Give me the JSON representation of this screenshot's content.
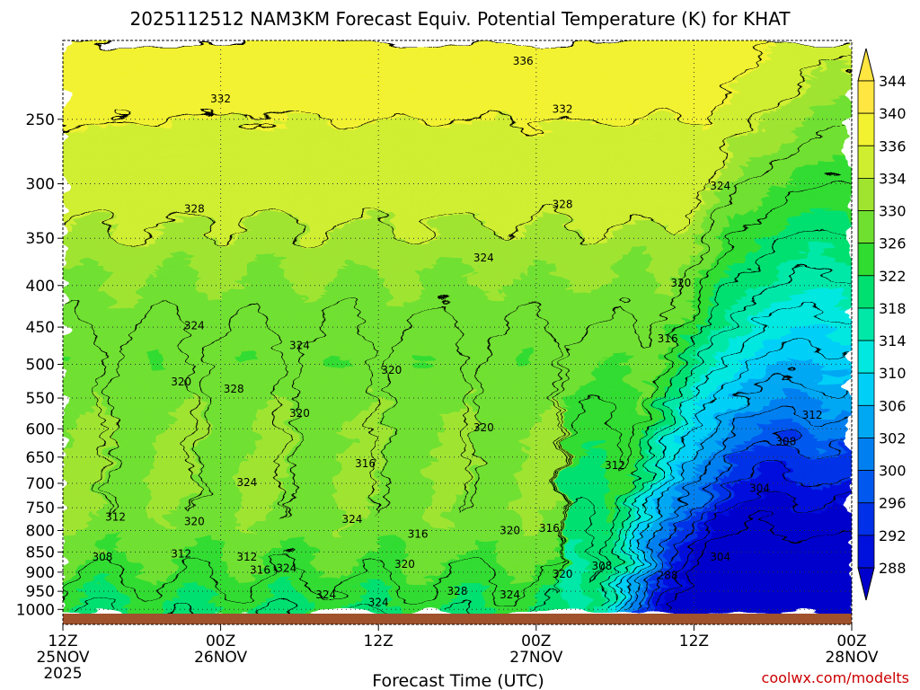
{
  "chart_data": {
    "type": "heatmap",
    "title": "2025112512 NAM3KM Forecast Equiv. Potential Temperature (K) for KHAT",
    "xlabel": "Forecast Time (UTC)",
    "ylabel": "",
    "variable": "Equivalent Potential Temperature (K)",
    "x_ticks": [
      {
        "hour": 0,
        "line1": "12Z",
        "line2": "25NOV",
        "line3": "2025"
      },
      {
        "hour": 12,
        "line1": "00Z",
        "line2": "26NOV",
        "line3": ""
      },
      {
        "hour": 24,
        "line1": "12Z",
        "line2": "",
        "line3": ""
      },
      {
        "hour": 36,
        "line1": "00Z",
        "line2": "27NOV",
        "line3": ""
      },
      {
        "hour": 48,
        "line1": "12Z",
        "line2": "",
        "line3": ""
      },
      {
        "hour": 60,
        "line1": "00Z",
        "line2": "28NOV",
        "line3": ""
      }
    ],
    "xlim_hours": [
      0,
      60
    ],
    "y_ticks": [
      250,
      300,
      350,
      400,
      450,
      500,
      550,
      600,
      650,
      700,
      750,
      800,
      850,
      900,
      950,
      1000
    ],
    "ylim_hPa": [
      1012,
      200
    ],
    "colorbar_levels": [
      288,
      292,
      296,
      300,
      302,
      306,
      310,
      314,
      318,
      322,
      326,
      330,
      334,
      336,
      340,
      344
    ],
    "colorbar_colors": [
      "#0000cc",
      "#0010dd",
      "#0030e8",
      "#0058ee",
      "#0080f0",
      "#00a8f4",
      "#00d0f8",
      "#00e8e0",
      "#00e8a8",
      "#00e070",
      "#30dc30",
      "#70e030",
      "#a0e430",
      "#d0ee30",
      "#f2f230",
      "#ffe640"
    ],
    "contour_labels": [
      {
        "value": "336",
        "hour": 35.0,
        "p": 212
      },
      {
        "value": "332",
        "hour": 12.0,
        "p": 236
      },
      {
        "value": "332",
        "hour": 38.0,
        "p": 243
      },
      {
        "value": "328",
        "hour": 10.0,
        "p": 322
      },
      {
        "value": "328",
        "hour": 38.0,
        "p": 318
      },
      {
        "value": "324",
        "hour": 50.0,
        "p": 302
      },
      {
        "value": "324",
        "hour": 32.0,
        "p": 370
      },
      {
        "value": "320",
        "hour": 47.0,
        "p": 397
      },
      {
        "value": "324",
        "hour": 10.0,
        "p": 448
      },
      {
        "value": "324",
        "hour": 18.0,
        "p": 474
      },
      {
        "value": "316",
        "hour": 46.0,
        "p": 465
      },
      {
        "value": "320",
        "hour": 9.0,
        "p": 525
      },
      {
        "value": "320",
        "hour": 25.0,
        "p": 508
      },
      {
        "value": "328",
        "hour": 13.0,
        "p": 536
      },
      {
        "value": "320",
        "hour": 18.0,
        "p": 574
      },
      {
        "value": "312",
        "hour": 57.0,
        "p": 577
      },
      {
        "value": "320",
        "hour": 32.0,
        "p": 598
      },
      {
        "value": "308",
        "hour": 55.0,
        "p": 622
      },
      {
        "value": "316",
        "hour": 23.0,
        "p": 662
      },
      {
        "value": "312",
        "hour": 42.0,
        "p": 665
      },
      {
        "value": "324",
        "hour": 14.0,
        "p": 698
      },
      {
        "value": "304",
        "hour": 53.0,
        "p": 710
      },
      {
        "value": "312",
        "hour": 4.0,
        "p": 770
      },
      {
        "value": "324",
        "hour": 22.0,
        "p": 775
      },
      {
        "value": "320",
        "hour": 10.0,
        "p": 780
      },
      {
        "value": "316",
        "hour": 27.0,
        "p": 808
      },
      {
        "value": "320",
        "hour": 34.0,
        "p": 800
      },
      {
        "value": "316",
        "hour": 37.0,
        "p": 795
      },
      {
        "value": "308",
        "hour": 3.0,
        "p": 862
      },
      {
        "value": "312",
        "hour": 9.0,
        "p": 855
      },
      {
        "value": "312",
        "hour": 14.0,
        "p": 862
      },
      {
        "value": "320",
        "hour": 26.0,
        "p": 880
      },
      {
        "value": "316",
        "hour": 15.0,
        "p": 895
      },
      {
        "value": "324",
        "hour": 17.0,
        "p": 890
      },
      {
        "value": "308",
        "hour": 41.0,
        "p": 885
      },
      {
        "value": "304",
        "hour": 50.0,
        "p": 862
      },
      {
        "value": "320",
        "hour": 38.0,
        "p": 905
      },
      {
        "value": "288",
        "hour": 46.0,
        "p": 908
      },
      {
        "value": "328",
        "hour": 30.0,
        "p": 950
      },
      {
        "value": "324",
        "hour": 20.0,
        "p": 960
      },
      {
        "value": "324",
        "hour": 34.0,
        "p": 960
      },
      {
        "value": "324",
        "hour": 24.0,
        "p": 980
      }
    ]
  },
  "watermark": "coolwx.com/modelts",
  "watermark_color": "#cc0000",
  "ground_color": "#a0522d"
}
